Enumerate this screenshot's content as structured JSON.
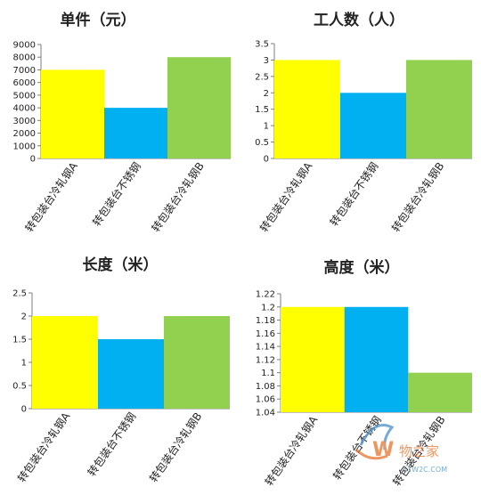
{
  "colors": {
    "yellow": "#FFFF00",
    "blue": "#00B0F0",
    "green": "#92D050",
    "axis": "#7F7F7F",
    "text": "#222222",
    "watermark_orange": "#E8742A",
    "watermark_blue": "#4A90C8"
  },
  "chart_data": [
    {
      "type": "bar",
      "title": "单件（元）",
      "categories": [
        "转包装台冷轧钢A",
        "转包装台不锈钢",
        "转包装台冷轧钢B"
      ],
      "values": [
        7000,
        4000,
        8000
      ],
      "series_colors": [
        "yellow",
        "blue",
        "green"
      ],
      "ylim": [
        0,
        9000
      ],
      "yticks": [
        "0",
        "1000",
        "2000",
        "3000",
        "4000",
        "5000",
        "6000",
        "7000",
        "8000",
        "9000"
      ],
      "grid": false
    },
    {
      "type": "bar",
      "title": "工人数（人）",
      "categories": [
        "转包装台冷轧钢A",
        "转包装台不锈钢",
        "转包装台冷轧钢B"
      ],
      "values": [
        3,
        2,
        3
      ],
      "series_colors": [
        "yellow",
        "blue",
        "green"
      ],
      "ylim": [
        0,
        3.5
      ],
      "yticks": [
        "0",
        "0.5",
        "1",
        "1.5",
        "2",
        "2.5",
        "3",
        "3.5"
      ],
      "grid": false
    },
    {
      "type": "bar",
      "title": "长度（米）",
      "categories": [
        "转包装台冷轧钢A",
        "转包装台不锈钢",
        "转包装台冷轧钢B"
      ],
      "values": [
        2,
        1.5,
        2
      ],
      "series_colors": [
        "yellow",
        "blue",
        "green"
      ],
      "ylim": [
        0,
        2.5
      ],
      "yticks": [
        "0",
        "0.5",
        "1",
        "1.5",
        "2",
        "2.5"
      ],
      "grid": false
    },
    {
      "type": "bar",
      "title": "高度（米）",
      "categories": [
        "转包装台冷轧钢A",
        "转包装台不锈钢",
        "转包装台冷轧钢B"
      ],
      "values": [
        1.2,
        1.2,
        1.1
      ],
      "series_colors": [
        "yellow",
        "blue",
        "green"
      ],
      "ylim": [
        1.04,
        1.22
      ],
      "yticks": [
        "1.04",
        "1.06",
        "1.08",
        "1.1",
        "1.12",
        "1.14",
        "1.16",
        "1.18",
        "1.2",
        "1.22"
      ],
      "grid": false
    }
  ],
  "watermark": {
    "text": "物之家",
    "url": "51W2C.COM"
  }
}
